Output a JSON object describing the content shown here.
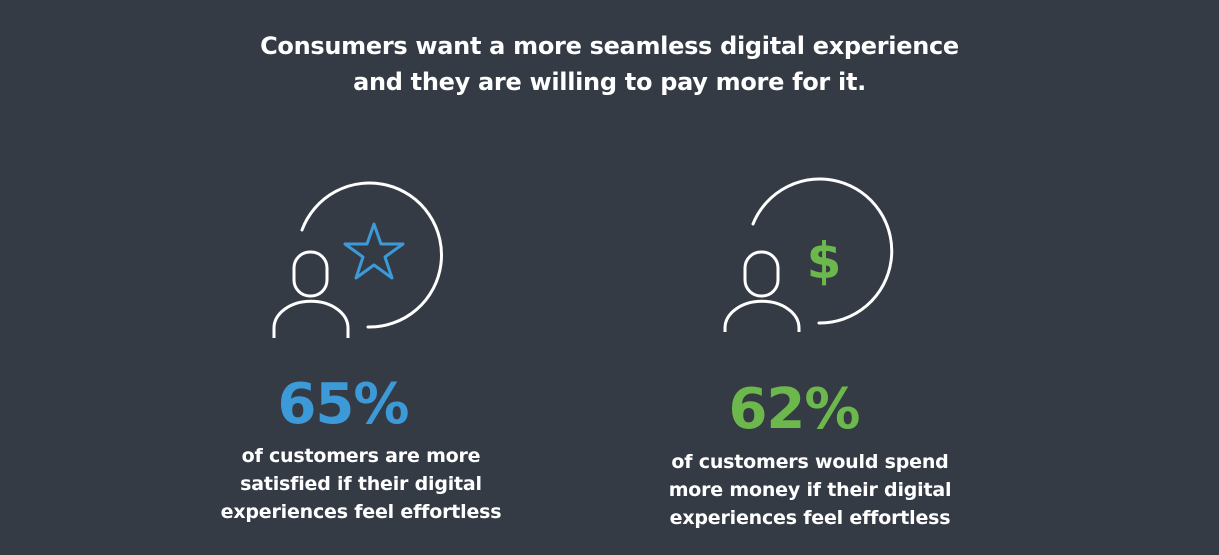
{
  "headline": {
    "line1": "Consumers want a more seamless digital experience",
    "line2": "and they are willing to pay more for it."
  },
  "stats": [
    {
      "percent": "65%",
      "color": "#3d9ad8",
      "icon": "person-star-icon",
      "desc_line1": "of customers are more",
      "desc_line2": "satisfied if their digital",
      "desc_line3": "experiences feel effortless"
    },
    {
      "percent": "62%",
      "color": "#6cb84c",
      "icon": "person-dollar-icon",
      "desc_line1": "of customers would spend",
      "desc_line2": "more money if their digital",
      "desc_line3": "experiences feel effortless"
    }
  ]
}
